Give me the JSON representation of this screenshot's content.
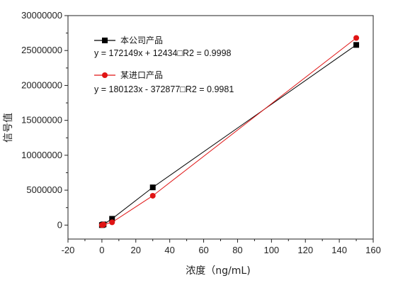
{
  "chart_data": {
    "type": "line",
    "xlabel": "浓度（ng/mL)",
    "ylabel": "信号值",
    "xlim": [
      -20,
      160
    ],
    "ylim": [
      -2000000,
      30000000
    ],
    "x_ticks": [
      "-20",
      "0",
      "20",
      "40",
      "60",
      "80",
      "100",
      "120",
      "140",
      "160"
    ],
    "y_ticks": [
      "0",
      "5000000",
      "10000000",
      "15000000",
      "20000000",
      "25000000",
      "30000000"
    ],
    "grid": false,
    "legend_position": "top-left",
    "series": [
      {
        "name": "本公司产品",
        "equation": "y = 172149x + 12434□R2 = 0.9998",
        "color": "#000000",
        "marker": "square",
        "x": [
          0,
          0.5,
          1,
          6,
          30,
          150
        ],
        "y": [
          0,
          50000,
          100000,
          900000,
          5400000,
          25800000
        ]
      },
      {
        "name": "某进口产品",
        "equation": "y = 180123x - 372877□R2 = 0.9981",
        "color": "#e01414",
        "marker": "circle",
        "x": [
          0,
          0.5,
          1,
          6,
          30,
          150
        ],
        "y": [
          0,
          30000,
          80000,
          400000,
          4200000,
          26800000
        ]
      }
    ]
  }
}
